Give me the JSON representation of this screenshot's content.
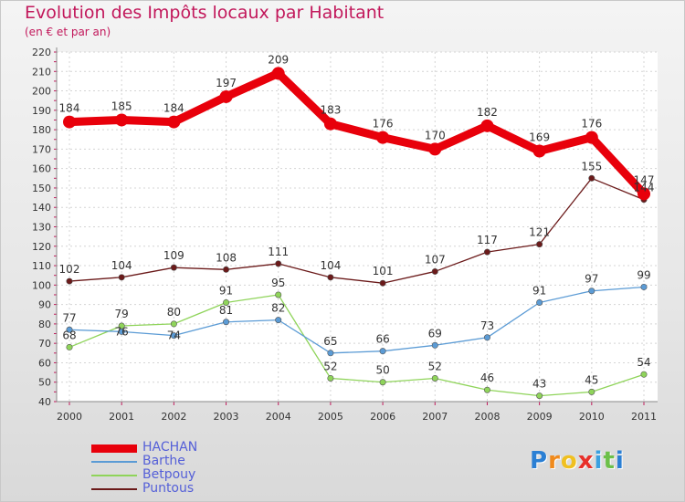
{
  "title": "Evolution des Impôts locaux par Habitant",
  "subtitle": "(en € et par an)",
  "logo": {
    "letters": [
      "P",
      "r",
      "o",
      "x",
      "i",
      "t",
      "i"
    ],
    "colors": [
      "#2a7fd4",
      "#f08a1c",
      "#f0c020",
      "#e8302a",
      "#3aa0e0",
      "#6cc04a",
      "#2a7fd4"
    ]
  },
  "chart_data": {
    "type": "line",
    "title": "Evolution des Impôts locaux par Habitant",
    "subtitle": "(en € et par an)",
    "x": [
      "2000",
      "2001",
      "2002",
      "2003",
      "2004",
      "2005",
      "2006",
      "2007",
      "2008",
      "2009",
      "2010",
      "2011"
    ],
    "ylim": [
      40,
      220
    ],
    "yticks": [
      40,
      50,
      60,
      70,
      80,
      90,
      100,
      110,
      120,
      130,
      140,
      150,
      160,
      170,
      180,
      190,
      200,
      210,
      220
    ],
    "grid": true,
    "legend_position": "bottom-left",
    "series": [
      {
        "name": "HACHAN",
        "color": "#e8000b",
        "values": [
          184,
          185,
          184,
          197,
          209,
          183,
          176,
          170,
          182,
          169,
          176,
          147
        ],
        "labels": [
          "184",
          "185",
          "184",
          "197",
          "209",
          "183",
          "176",
          "170",
          "182",
          "169",
          "176",
          "147"
        ]
      },
      {
        "name": "Barthe",
        "color": "#5b9bd5",
        "values": [
          77,
          76,
          74,
          81,
          82,
          65,
          66,
          69,
          73,
          91,
          97,
          99
        ],
        "labels": [
          "77",
          "",
          "",
          "81",
          "82",
          "65",
          "66",
          "69",
          "73",
          "91",
          "97",
          "99"
        ]
      },
      {
        "name": "Betpouy",
        "color": "#8fd45a",
        "values": [
          68,
          79,
          80,
          91,
          95,
          52,
          50,
          52,
          46,
          43,
          45,
          54
        ],
        "labels": [
          "68",
          "79",
          "80",
          "91",
          "95",
          "52",
          "50",
          "52",
          "46",
          "43",
          "45",
          "54"
        ]
      },
      {
        "name": "Puntous",
        "color": "#6b1a1a",
        "values": [
          102,
          104,
          109,
          108,
          111,
          104,
          101,
          107,
          117,
          121,
          155,
          144
        ],
        "labels": [
          "102",
          "104",
          "109",
          "108",
          "111",
          "104",
          "101",
          "107",
          "117",
          "121",
          "155",
          "144"
        ]
      }
    ],
    "extra_labels": [
      {
        "series": 1,
        "index": 1,
        "text": "76"
      },
      {
        "series": 1,
        "index": 2,
        "text": "74"
      }
    ]
  }
}
